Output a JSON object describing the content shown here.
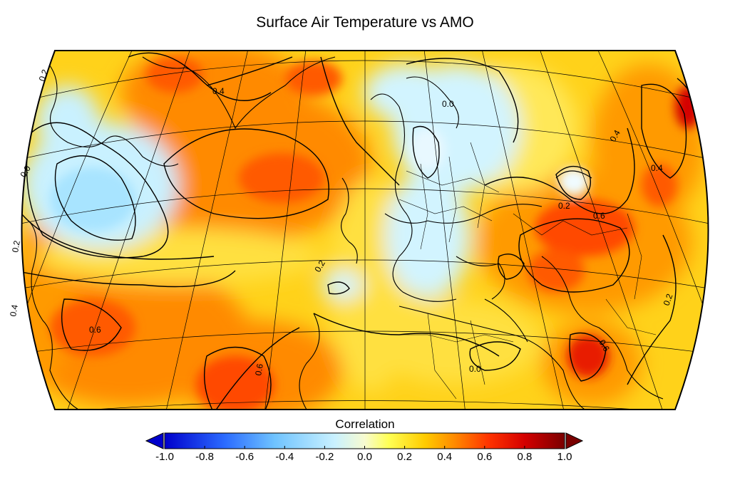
{
  "title": "Surface Air Temperature vs AMO",
  "colorbar": {
    "label": "Correlation",
    "ticks": [
      "-1.0",
      "-0.8",
      "-0.6",
      "-0.4",
      "-0.2",
      "0.0",
      "0.2",
      "0.4",
      "0.6",
      "0.8",
      "1.0"
    ],
    "range": [
      -1.0,
      1.0
    ],
    "stops": [
      {
        "v": -1.0,
        "color": "#0000cc"
      },
      {
        "v": -0.7,
        "color": "#2b6bff"
      },
      {
        "v": -0.45,
        "color": "#6fc3ff"
      },
      {
        "v": -0.15,
        "color": "#c9f1ff"
      },
      {
        "v": 0.0,
        "color": "#f7fbd0"
      },
      {
        "v": 0.12,
        "color": "#ffff55"
      },
      {
        "v": 0.3,
        "color": "#ffcc00"
      },
      {
        "v": 0.45,
        "color": "#ff8a00"
      },
      {
        "v": 0.62,
        "color": "#ff3300"
      },
      {
        "v": 0.8,
        "color": "#d40000"
      },
      {
        "v": 1.0,
        "color": "#7a0000"
      }
    ],
    "under_color": "#0000cc",
    "over_color": "#7a0000"
  },
  "contour_labels": [
    "0.2",
    "0.4",
    "0.0",
    "0.6",
    "0.6",
    "0.6",
    "0.2",
    "0.0",
    "0.6",
    "0.2",
    "0.4",
    "0.4",
    "0.2",
    "0.4",
    "0.0",
    "0.2"
  ],
  "colors": {
    "background": "#ffffff",
    "coast": "#000000"
  }
}
